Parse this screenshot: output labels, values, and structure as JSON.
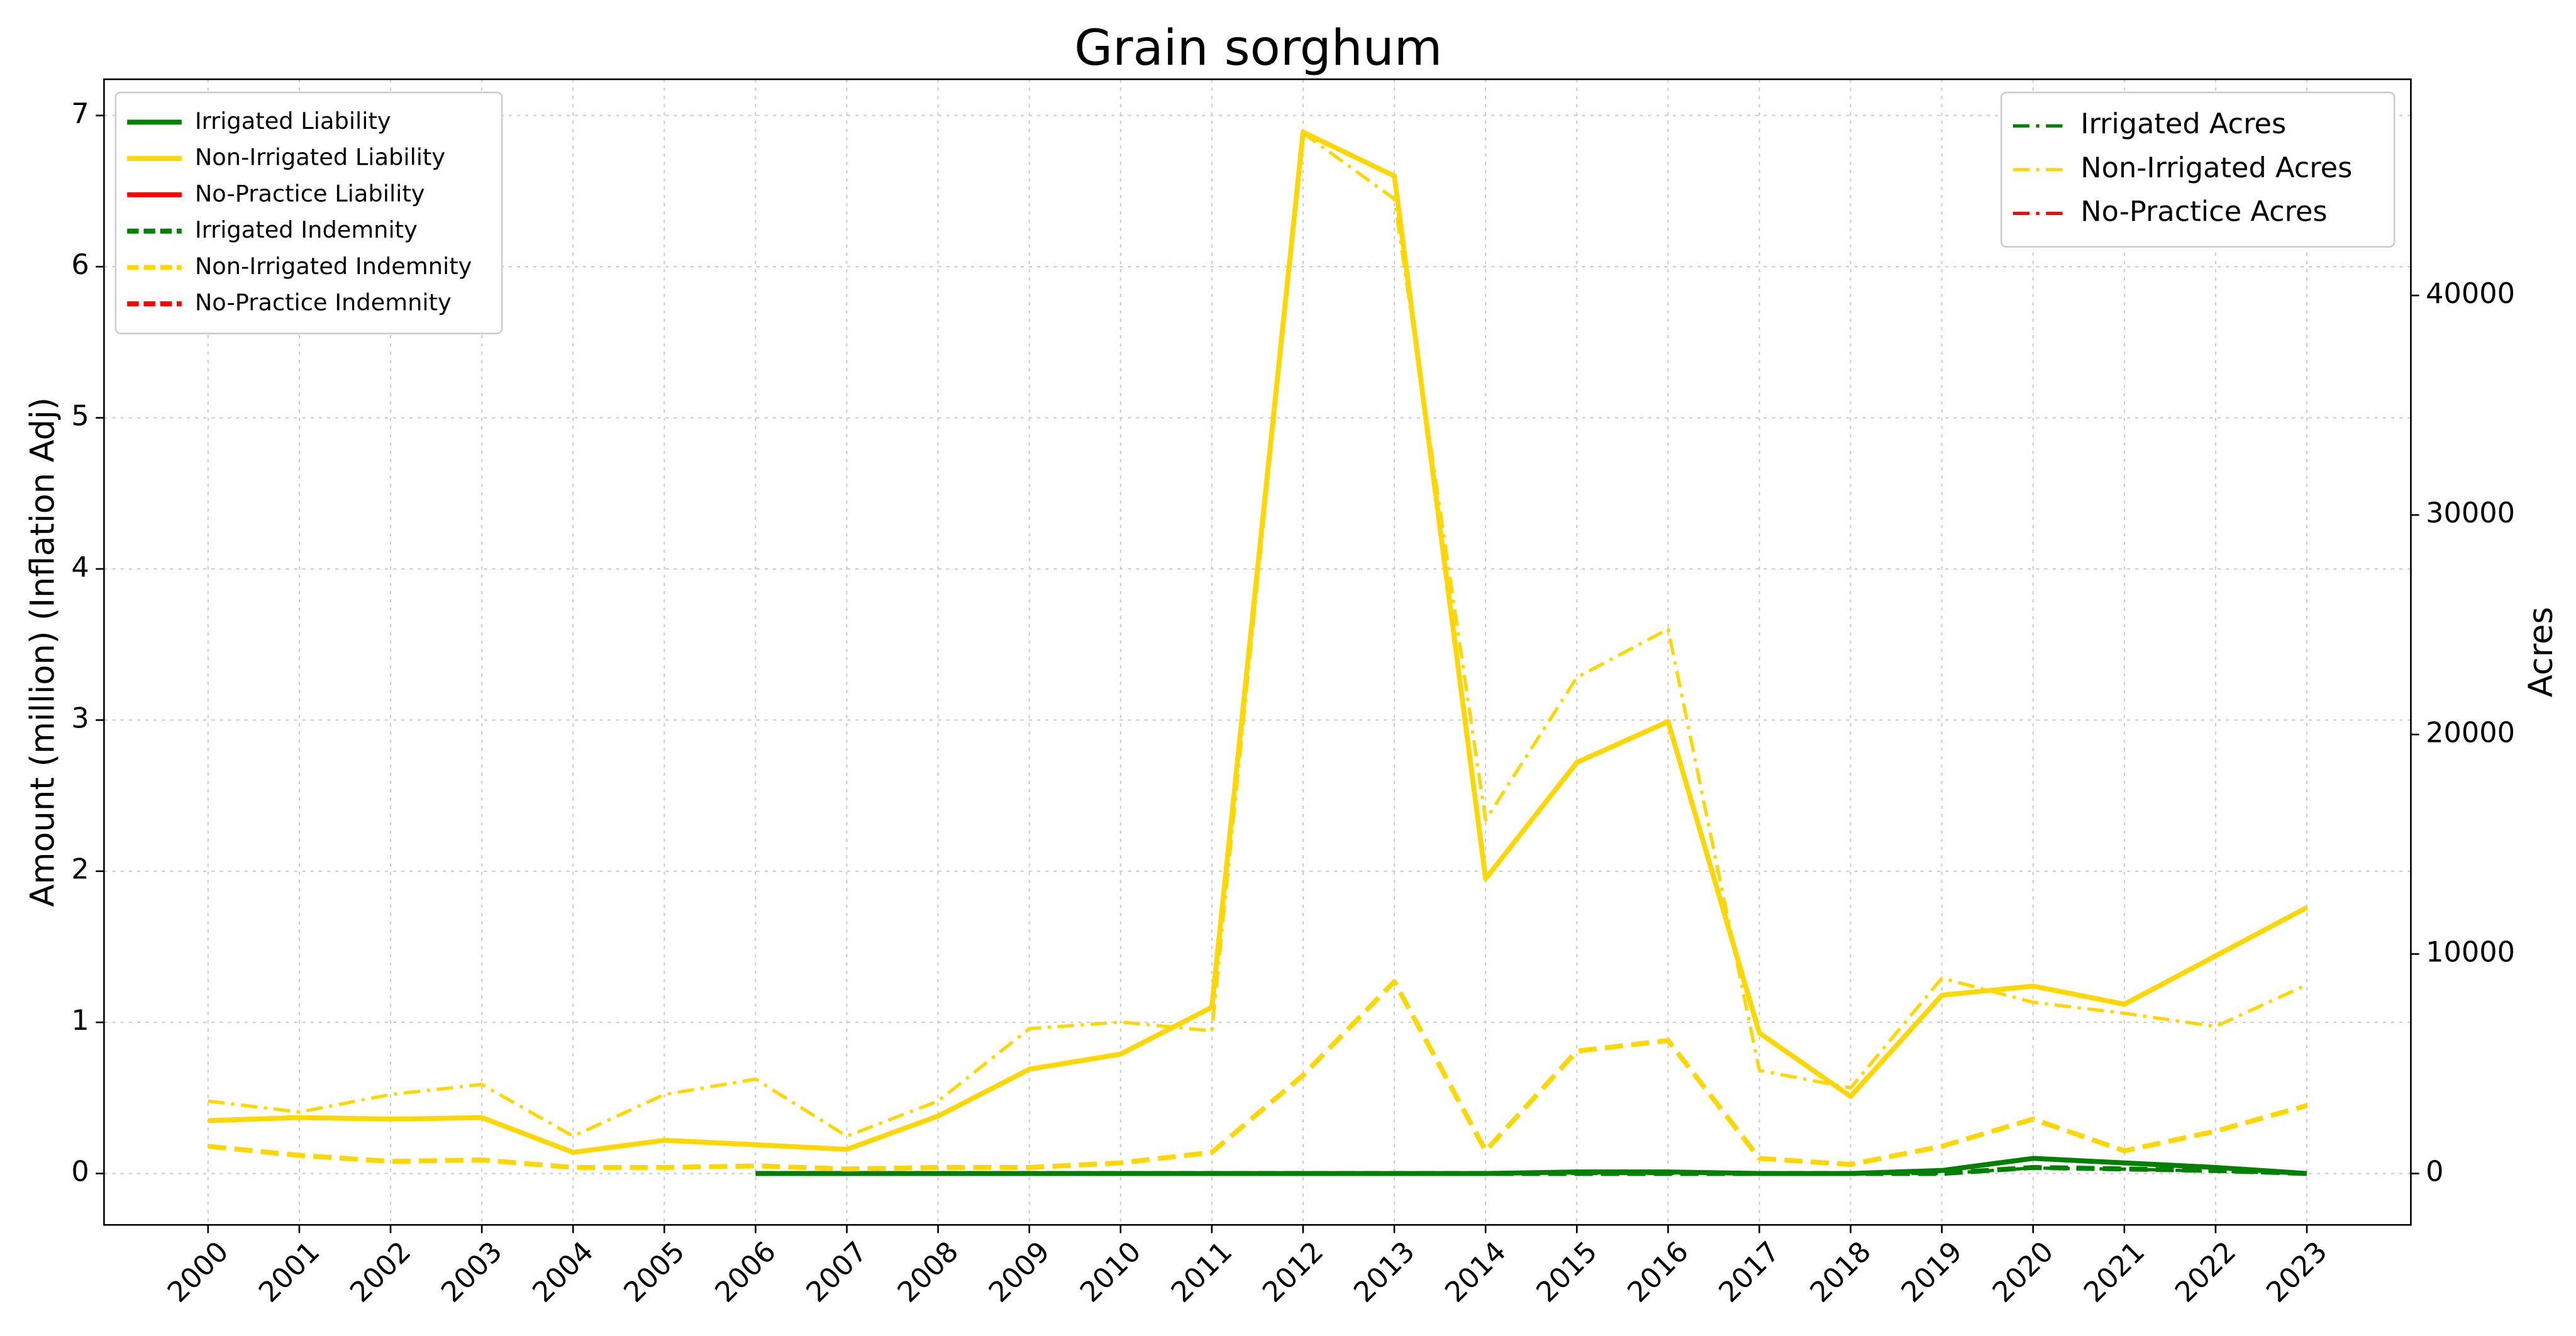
{
  "chart_data": {
    "type": "line",
    "title": "Grain sorghum",
    "y_label": "Amount (million) (Inflation Adj)",
    "y2_label": "Acres",
    "categories": [
      "2000",
      "2001",
      "2002",
      "2003",
      "2004",
      "2005",
      "2006",
      "2007",
      "2008",
      "2009",
      "2010",
      "2011",
      "2012",
      "2013",
      "2014",
      "2015",
      "2016",
      "2017",
      "2018",
      "2019",
      "2020",
      "2021",
      "2022",
      "2023"
    ],
    "ylim": [
      -0.34,
      7.24
    ],
    "yticks": [
      0,
      1,
      2,
      3,
      4,
      5,
      6,
      7
    ],
    "y2lim": [
      -2340,
      49850
    ],
    "y2ticks": [
      0,
      10000,
      20000,
      30000,
      40000
    ],
    "grid": true,
    "legend_loc": "upper left",
    "legend2_loc": "upper right",
    "series": [
      {
        "name": "Irrigated Liability",
        "color": "#008000",
        "dash": "solid",
        "values": [
          null,
          null,
          null,
          null,
          null,
          null,
          0,
          0,
          0,
          0,
          0,
          0,
          0,
          0,
          0,
          0.01,
          0.01,
          0,
          0,
          0.02,
          0.1,
          0.07,
          0.04,
          0
        ]
      },
      {
        "name": "Non-Irrigated Liability",
        "color": "#ffd700",
        "dash": "solid",
        "values": [
          0.35,
          0.37,
          0.36,
          0.37,
          0.14,
          0.22,
          0.19,
          0.16,
          0.38,
          0.69,
          0.79,
          1.1,
          6.89,
          6.6,
          1.95,
          2.72,
          2.99,
          0.93,
          0.51,
          1.18,
          1.24,
          1.12,
          1.44,
          1.76
        ]
      },
      {
        "name": "No-Practice Liability",
        "color": "#ff0000",
        "dash": "solid",
        "values": [
          null,
          null,
          null,
          null,
          null,
          null,
          null,
          null,
          null,
          null,
          null,
          null,
          null,
          null,
          null,
          null,
          null,
          null,
          null,
          null,
          null,
          null,
          null,
          null
        ]
      },
      {
        "name": "Irrigated Indemnity",
        "color": "#008000",
        "dash": "dashed",
        "values": [
          null,
          null,
          null,
          null,
          null,
          null,
          0,
          0,
          0,
          0,
          0,
          0,
          0,
          0,
          0,
          0,
          0,
          0,
          0,
          0,
          0.04,
          0.03,
          0.02,
          0
        ]
      },
      {
        "name": "Non-Irrigated Indemnity",
        "color": "#ffd700",
        "dash": "dashed",
        "values": [
          0.18,
          0.12,
          0.08,
          0.09,
          0.04,
          0.04,
          0.05,
          0.03,
          0.04,
          0.04,
          0.07,
          0.14,
          0.65,
          1.27,
          0.15,
          0.81,
          0.88,
          0.1,
          0.06,
          0.18,
          0.36,
          0.15,
          0.28,
          0.45
        ]
      },
      {
        "name": "No-Practice Indemnity",
        "color": "#ff0000",
        "dash": "dashed",
        "values": [
          null,
          null,
          null,
          null,
          null,
          null,
          null,
          null,
          null,
          null,
          null,
          null,
          null,
          null,
          null,
          null,
          null,
          null,
          null,
          null,
          null,
          null,
          null,
          null
        ]
      },
      {
        "name": "Irrigated Acres",
        "color": "#008000",
        "dash": "dashdot",
        "axis": "y2",
        "values": [
          null,
          null,
          null,
          null,
          null,
          null,
          0,
          0,
          0,
          0,
          0,
          0,
          0,
          0,
          0,
          0,
          0,
          0,
          0,
          0,
          250,
          200,
          100,
          0
        ]
      },
      {
        "name": "Non-Irrigated Acres",
        "color": "#ffd700",
        "dash": "dashdot",
        "axis": "y2",
        "values": [
          3300,
          2800,
          3600,
          4060,
          1700,
          3600,
          4300,
          1700,
          3300,
          6600,
          6900,
          6500,
          47400,
          44400,
          16100,
          22600,
          24800,
          4700,
          3900,
          8900,
          7800,
          7300,
          6700,
          8600
        ]
      },
      {
        "name": "No-Practice Acres",
        "color": "#ff0000",
        "dash": "dashdot",
        "axis": "y2",
        "values": [
          null,
          null,
          null,
          null,
          null,
          null,
          null,
          null,
          null,
          null,
          null,
          null,
          null,
          null,
          null,
          null,
          null,
          null,
          null,
          null,
          null,
          null,
          null,
          null
        ]
      }
    ]
  }
}
